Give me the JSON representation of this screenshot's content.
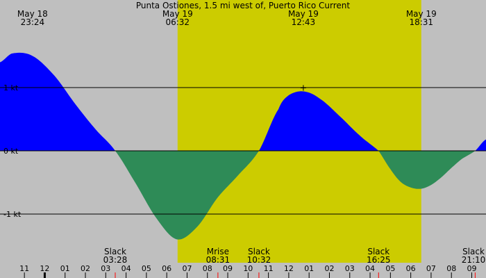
{
  "title": "Punta Ostiones, 1.5 mi west of, Puerto Rico Current",
  "colors": {
    "background": "#bfbfbf",
    "daylight": "#cccc00",
    "flood": "#0000ff",
    "ebb": "#2e8b57",
    "line": "#000000",
    "event_tick": "#ff0000"
  },
  "header_events": [
    {
      "date": "May 18",
      "time": "23:24",
      "hour": -0.6
    },
    {
      "date": "May 19",
      "time": "06:32",
      "hour": 6.533
    },
    {
      "date": "May 19",
      "time": "12:43",
      "hour": 12.717
    },
    {
      "date": "May 19",
      "time": "18:31",
      "hour": 18.517
    }
  ],
  "bottom_events": [
    {
      "label": "Slack",
      "time": "03:28",
      "hour": 3.467
    },
    {
      "label": "Mrise",
      "time": "08:31",
      "hour": 8.517
    },
    {
      "label": "Slack",
      "time": "10:32",
      "hour": 10.533
    },
    {
      "label": "Slack",
      "time": "16:25",
      "hour": 16.417
    },
    {
      "label": "Slack",
      "time": "21:10",
      "hour": 21.167
    }
  ],
  "chart_data": {
    "type": "area",
    "title": "Punta Ostiones, 1.5 mi west of, Puerto Rico Current",
    "xlabel": "",
    "ylabel": "",
    "x_unit": "hour of day (May 19)",
    "xlim": [
      -2.2,
      21.7
    ],
    "ylim": [
      -1.45,
      1.6
    ],
    "y_ticks": [
      {
        "value": 1,
        "label": "1 kt"
      },
      {
        "value": 0,
        "label": "0 kt"
      },
      {
        "value": -1,
        "label": "-1 kt"
      }
    ],
    "x_tick_labels": [
      "11",
      "12",
      "01",
      "02",
      "03",
      "04",
      "05",
      "06",
      "07",
      "08",
      "09",
      "10",
      "11",
      "12",
      "01",
      "02",
      "03",
      "04",
      "05",
      "06",
      "07",
      "08",
      "09"
    ],
    "x_tick_hours": [
      -1,
      0,
      1,
      2,
      3,
      4,
      5,
      6,
      7,
      8,
      9,
      10,
      11,
      12,
      13,
      14,
      15,
      16,
      17,
      18,
      19,
      20,
      21
    ],
    "daylight_span": [
      6.533,
      18.517
    ],
    "series": [
      {
        "x": [
          -2.2,
          -1.6,
          -0.6,
          0.5,
          1.5,
          2.5,
          3.467,
          4.5,
          5.5,
          6.5,
          7.5,
          8.5,
          9.5,
          10.533,
          11.5,
          12.0,
          12.717,
          13.5,
          14.5,
          15.5,
          16.417,
          17.0,
          17.5,
          18.0,
          18.5,
          19.0,
          19.5,
          20.0,
          20.5,
          21.167,
          21.7
        ],
        "y": [
          1.4,
          1.54,
          1.5,
          1.18,
          0.74,
          0.34,
          0.0,
          -0.53,
          -1.07,
          -1.4,
          -1.2,
          -0.74,
          -0.39,
          0.0,
          0.66,
          0.88,
          0.94,
          0.83,
          0.55,
          0.24,
          0.0,
          -0.29,
          -0.49,
          -0.58,
          -0.6,
          -0.54,
          -0.42,
          -0.27,
          -0.13,
          0.0,
          0.18
        ]
      }
    ]
  }
}
